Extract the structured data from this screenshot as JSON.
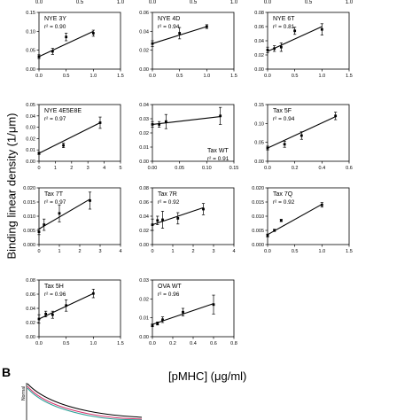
{
  "figure": {
    "y_title": "Binding linear density (1/μm)",
    "x_title": "[pMHC] (μg/ml)",
    "panel_b_label": "B",
    "panel_b_ylabel": "Normal"
  },
  "colors": {
    "line": "#000000",
    "point": "#000000",
    "axis": "#000000",
    "inset_red": "#d6336c",
    "inset_black": "#000000",
    "inset_teal": "#2aa198"
  },
  "chart_data": [
    {
      "type": "scatter",
      "name": "NYE 3Y",
      "r2": "r² = 0.90",
      "xlim": [
        0,
        1.5
      ],
      "ylim": [
        0,
        0.15
      ],
      "xticks": [
        "0.0",
        "0.5",
        "1.0",
        "1.5"
      ],
      "yticks": [
        "0.00",
        "0.05",
        "0.10",
        "0.15"
      ],
      "points": [
        {
          "x": 0,
          "y": 0.033,
          "err": 0.005
        },
        {
          "x": 0.25,
          "y": 0.047,
          "err": 0.008
        },
        {
          "x": 0.5,
          "y": 0.085,
          "err": 0.01
        },
        {
          "x": 1.0,
          "y": 0.095,
          "err": 0.008
        }
      ],
      "fit": [
        [
          0,
          0.033
        ],
        [
          1.0,
          0.1
        ]
      ]
    },
    {
      "type": "scatter",
      "name": "NYE 4D",
      "r2": "r² = 0.94",
      "xlim": [
        0,
        1.5
      ],
      "ylim": [
        0,
        0.06
      ],
      "xticks": [
        "0.0",
        "0.5",
        "1.0",
        "1.5"
      ],
      "yticks": [
        "0.00",
        "0.02",
        "0.04",
        "0.06"
      ],
      "points": [
        {
          "x": 0,
          "y": 0.027,
          "err": 0.003
        },
        {
          "x": 0.5,
          "y": 0.038,
          "err": 0.006
        },
        {
          "x": 1.0,
          "y": 0.045,
          "err": 0.002
        }
      ],
      "fit": [
        [
          0,
          0.027
        ],
        [
          1.0,
          0.045
        ]
      ]
    },
    {
      "type": "scatter",
      "name": "NYE 6T",
      "r2": "r² = 0.81",
      "xlim": [
        0,
        1.5
      ],
      "ylim": [
        0,
        0.08
      ],
      "xticks": [
        "0.0",
        "0.5",
        "1.0",
        "1.5"
      ],
      "yticks": [
        "0.00",
        "0.02",
        "0.04",
        "0.06",
        "0.08"
      ],
      "points": [
        {
          "x": 0,
          "y": 0.027,
          "err": 0.004
        },
        {
          "x": 0.125,
          "y": 0.029,
          "err": 0.004
        },
        {
          "x": 0.25,
          "y": 0.031,
          "err": 0.006
        },
        {
          "x": 0.5,
          "y": 0.054,
          "err": 0.005
        },
        {
          "x": 1.0,
          "y": 0.056,
          "err": 0.008
        }
      ],
      "fit": [
        [
          0,
          0.025
        ],
        [
          1.0,
          0.06
        ]
      ]
    },
    {
      "type": "scatter",
      "name": "NYE 4E5E8E",
      "r2": "r² = 0.97",
      "xlim": [
        0,
        5
      ],
      "ylim": [
        0,
        0.05
      ],
      "xticks": [
        "0",
        "1",
        "2",
        "3",
        "4",
        "5"
      ],
      "yticks": [
        "0.00",
        "0.01",
        "0.02",
        "0.03",
        "0.04",
        "0.05"
      ],
      "points": [
        {
          "x": 0,
          "y": 0.007,
          "err": 0.001
        },
        {
          "x": 1.5,
          "y": 0.014,
          "err": 0.002
        },
        {
          "x": 3.75,
          "y": 0.034,
          "err": 0.005
        }
      ],
      "fit": [
        [
          0,
          0.007
        ],
        [
          3.75,
          0.034
        ]
      ]
    },
    {
      "type": "scatter",
      "name": "Tax WT",
      "r2": "r² = 0.91",
      "xlim": [
        0,
        0.15
      ],
      "ylim": [
        0,
        0.04
      ],
      "xticks": [
        "0.00",
        "0.05",
        "0.10",
        "0.15"
      ],
      "yticks": [
        "0.00",
        "0.01",
        "0.02",
        "0.03",
        "0.04"
      ],
      "points": [
        {
          "x": 0,
          "y": 0.026,
          "err": 0.002
        },
        {
          "x": 0.0125,
          "y": 0.026,
          "err": 0.002
        },
        {
          "x": 0.025,
          "y": 0.028,
          "err": 0.005
        },
        {
          "x": 0.125,
          "y": 0.032,
          "err": 0.006
        }
      ],
      "fit": [
        [
          0,
          0.026
        ],
        [
          0.125,
          0.0315
        ]
      ]
    },
    {
      "type": "scatter",
      "name": "Tax 5F",
      "r2": "r² = 0.94",
      "xlim": [
        0,
        0.6
      ],
      "ylim": [
        0,
        0.15
      ],
      "xticks": [
        "0.0",
        "0.2",
        "0.4",
        "0.6"
      ],
      "yticks": [
        "0.00",
        "0.05",
        "0.10",
        "0.15"
      ],
      "points": [
        {
          "x": 0,
          "y": 0.035,
          "err": 0.005
        },
        {
          "x": 0.125,
          "y": 0.045,
          "err": 0.008
        },
        {
          "x": 0.25,
          "y": 0.068,
          "err": 0.01
        },
        {
          "x": 0.5,
          "y": 0.12,
          "err": 0.01
        }
      ],
      "fit": [
        [
          0,
          0.035
        ],
        [
          0.5,
          0.118
        ]
      ]
    },
    {
      "type": "scatter",
      "name": "Tax 7T",
      "r2": "r² = 0.97",
      "xlim": [
        0,
        4
      ],
      "ylim": [
        0,
        0.02
      ],
      "xticks": [
        "0",
        "1",
        "2",
        "3",
        "4"
      ],
      "yticks": [
        "0.000",
        "0.005",
        "0.010",
        "0.015",
        "0.020"
      ],
      "points": [
        {
          "x": 0,
          "y": 0.0045,
          "err": 0.001
        },
        {
          "x": 0.25,
          "y": 0.007,
          "err": 0.002
        },
        {
          "x": 1.0,
          "y": 0.011,
          "err": 0.003
        },
        {
          "x": 2.5,
          "y": 0.0155,
          "err": 0.003
        }
      ],
      "fit": [
        [
          0,
          0.0055
        ],
        [
          2.5,
          0.016
        ]
      ]
    },
    {
      "type": "scatter",
      "name": "Tax 7R",
      "r2": "r² = 0.92",
      "xlim": [
        0,
        4
      ],
      "ylim": [
        0,
        0.08
      ],
      "xticks": [
        "0",
        "1",
        "2",
        "3",
        "4"
      ],
      "yticks": [
        "0.00",
        "0.02",
        "0.04",
        "0.06",
        "0.08"
      ],
      "points": [
        {
          "x": 0,
          "y": 0.028,
          "err": 0.008
        },
        {
          "x": 0.25,
          "y": 0.034,
          "err": 0.006
        },
        {
          "x": 0.5,
          "y": 0.035,
          "err": 0.012
        },
        {
          "x": 1.25,
          "y": 0.037,
          "err": 0.008
        },
        {
          "x": 2.5,
          "y": 0.05,
          "err": 0.008
        }
      ],
      "fit": [
        [
          0,
          0.028
        ],
        [
          2.5,
          0.052
        ]
      ]
    },
    {
      "type": "scatter",
      "name": "Tax 7Q",
      "r2": "r² = 0.92",
      "xlim": [
        0,
        1.5
      ],
      "ylim": [
        0,
        0.02
      ],
      "xticks": [
        "0.0",
        "0.5",
        "1.0",
        "1.5"
      ],
      "yticks": [
        "0.000",
        "0.005",
        "0.010",
        "0.015",
        "0.020"
      ],
      "points": [
        {
          "x": 0,
          "y": 0.0032,
          "err": 0.0005
        },
        {
          "x": 0.125,
          "y": 0.005,
          "err": 0.0004
        },
        {
          "x": 0.25,
          "y": 0.0085,
          "err": 0.0004
        },
        {
          "x": 1.0,
          "y": 0.014,
          "err": 0.0008
        }
      ],
      "fit": [
        [
          0,
          0.0035
        ],
        [
          1.0,
          0.0142
        ]
      ]
    },
    {
      "type": "scatter",
      "name": "Tax 5H",
      "r2": "r² = 0.96",
      "xlim": [
        0,
        1.5
      ],
      "ylim": [
        0,
        0.08
      ],
      "xticks": [
        "0.0",
        "0.5",
        "1.0",
        "1.5"
      ],
      "yticks": [
        "0.00",
        "0.02",
        "0.04",
        "0.06",
        "0.08"
      ],
      "points": [
        {
          "x": 0,
          "y": 0.025,
          "err": 0.006
        },
        {
          "x": 0.125,
          "y": 0.032,
          "err": 0.004
        },
        {
          "x": 0.25,
          "y": 0.031,
          "err": 0.005
        },
        {
          "x": 0.5,
          "y": 0.044,
          "err": 0.008
        },
        {
          "x": 1.0,
          "y": 0.061,
          "err": 0.006
        }
      ],
      "fit": [
        [
          0,
          0.025
        ],
        [
          1.0,
          0.061
        ]
      ]
    },
    {
      "type": "scatter",
      "name": "OVA WT",
      "r2": "r² = 0.96",
      "xlim": [
        0,
        0.8
      ],
      "ylim": [
        0,
        0.03
      ],
      "xticks": [
        "0.0",
        "0.2",
        "0.4",
        "0.6",
        "0.8"
      ],
      "yticks": [
        "0.00",
        "0.01",
        "0.02",
        "0.03"
      ],
      "points": [
        {
          "x": 0,
          "y": 0.006,
          "err": 0.0007
        },
        {
          "x": 0.05,
          "y": 0.007,
          "err": 0.0008
        },
        {
          "x": 0.1,
          "y": 0.009,
          "err": 0.0015
        },
        {
          "x": 0.3,
          "y": 0.013,
          "err": 0.002
        },
        {
          "x": 0.6,
          "y": 0.017,
          "err": 0.005
        }
      ],
      "fit": [
        [
          0,
          0.0065
        ],
        [
          0.6,
          0.0175
        ]
      ]
    }
  ]
}
